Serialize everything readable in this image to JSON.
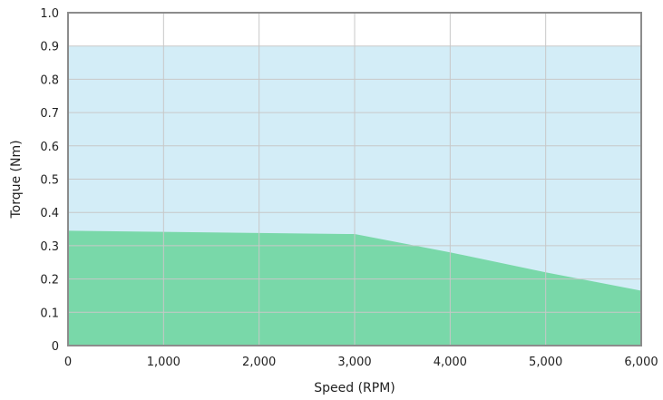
{
  "chart_data": {
    "type": "area",
    "xlabel": "Speed (RPM)",
    "ylabel": "Torque (Nm)",
    "xlim": [
      0,
      6000
    ],
    "ylim": [
      0,
      1.0
    ],
    "x_ticks": [
      0,
      1000,
      2000,
      3000,
      4000,
      5000,
      6000
    ],
    "x_tick_labels": [
      "0",
      "1,000",
      "2,000",
      "3,000",
      "4,000",
      "5,000",
      "6,000"
    ],
    "y_ticks": [
      0,
      0.1,
      0.2,
      0.3,
      0.4,
      0.5,
      0.6,
      0.7,
      0.8,
      0.9,
      1.0
    ],
    "y_tick_labels": [
      "0",
      "0.1",
      "0.2",
      "0.3",
      "0.4",
      "0.5",
      "0.6",
      "0.7",
      "0.8",
      "0.9",
      "1.0"
    ],
    "grid": true,
    "series": [
      {
        "x": [
          0,
          6000
        ],
        "y": [
          0.9,
          0.9
        ],
        "color": "#d3edf7"
      },
      {
        "x": [
          0,
          3000,
          4000,
          5000,
          6000
        ],
        "y": [
          0.345,
          0.335,
          0.28,
          0.22,
          0.165
        ],
        "color": "#79d8a9"
      }
    ],
    "colors": {
      "grid": "#c8c8c8",
      "frame": "#8c8c8c"
    }
  }
}
